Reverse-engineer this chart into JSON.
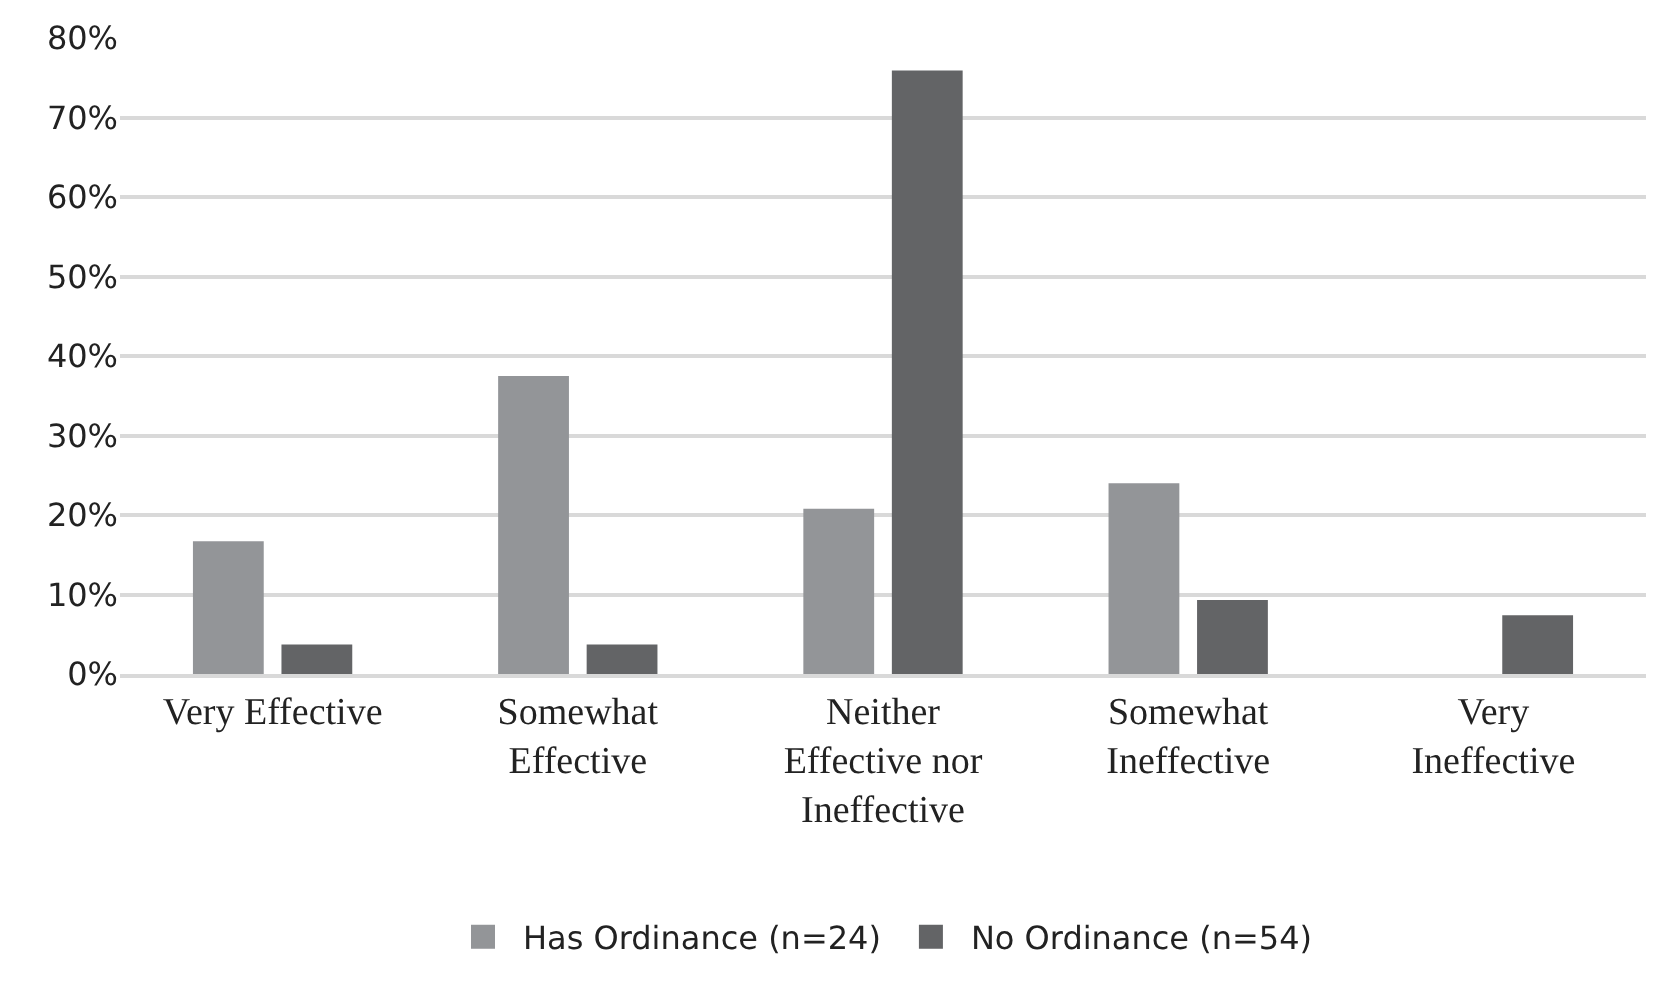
{
  "chart_data": {
    "type": "bar",
    "categories": [
      "Very Effective",
      "Somewhat\nEffective",
      "Neither\nEffective nor\nIneffective",
      "Somewhat\nIneffective",
      "Very\nIneffective"
    ],
    "series": [
      {
        "name": "Has Ordinance (n=24)",
        "color": "#939598",
        "values": [
          16.7,
          37.5,
          20.8,
          24,
          0
        ]
      },
      {
        "name": "No Ordinance (n=54)",
        "color": "#636466",
        "values": [
          3.7,
          3.7,
          75.9,
          9.3,
          7.4
        ]
      }
    ],
    "ylim": [
      0,
      80
    ],
    "yticks": [
      {
        "value": 0,
        "label": "0%"
      },
      {
        "value": 10,
        "label": "10%"
      },
      {
        "value": 20,
        "label": "20%"
      },
      {
        "value": 30,
        "label": "30%"
      },
      {
        "value": 40,
        "label": "40%"
      },
      {
        "value": 50,
        "label": "50%"
      },
      {
        "value": 60,
        "label": "60%"
      },
      {
        "value": 70,
        "label": "70%"
      },
      {
        "value": 80,
        "label": "80%"
      }
    ],
    "grid": "y",
    "legend": "bottom"
  }
}
